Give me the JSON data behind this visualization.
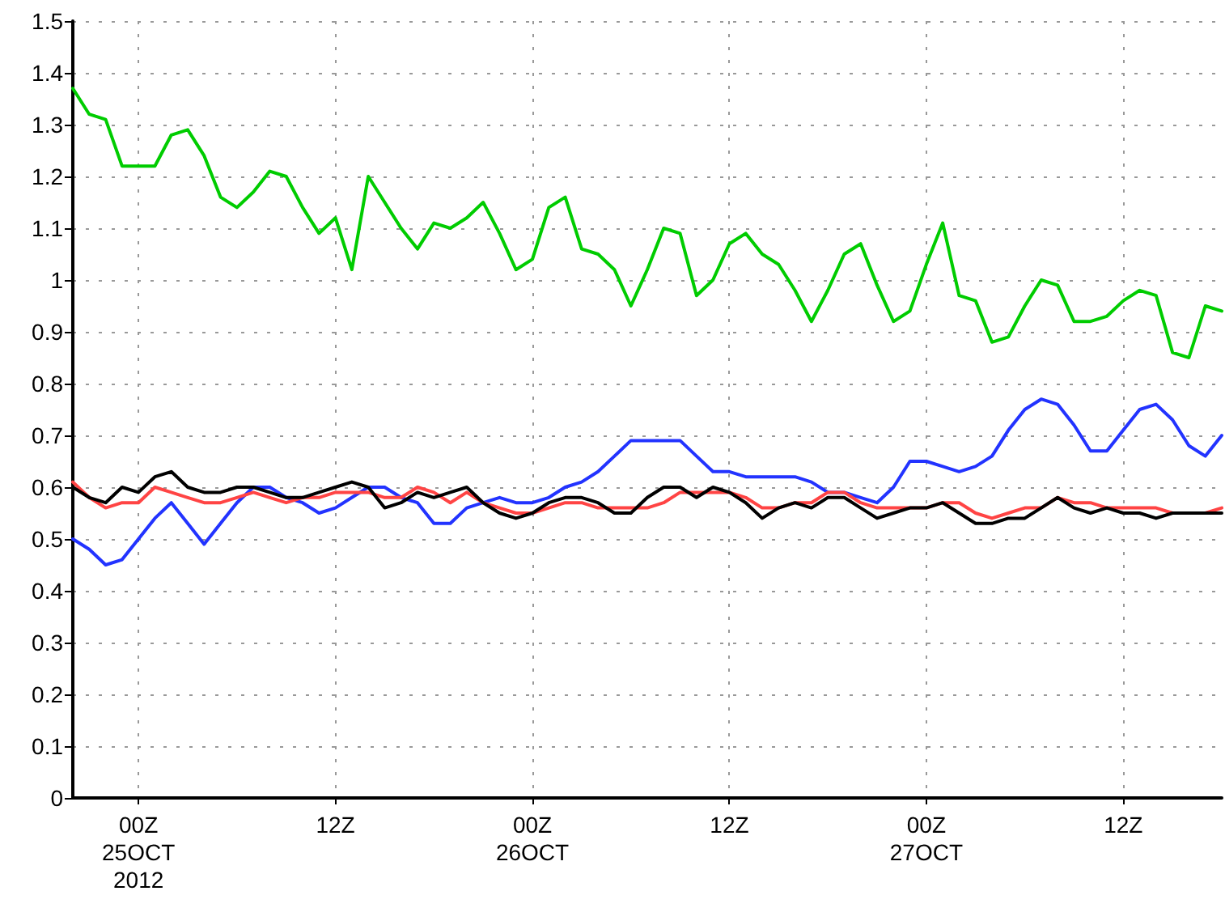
{
  "chart_data": {
    "type": "line",
    "x": [
      "2012-10-24T20:00",
      "2012-10-24T21:00",
      "2012-10-24T22:00",
      "2012-10-24T23:00",
      "2012-10-25T00:00",
      "2012-10-25T01:00",
      "2012-10-25T02:00",
      "2012-10-25T03:00",
      "2012-10-25T04:00",
      "2012-10-25T05:00",
      "2012-10-25T06:00",
      "2012-10-25T07:00",
      "2012-10-25T08:00",
      "2012-10-25T09:00",
      "2012-10-25T10:00",
      "2012-10-25T11:00",
      "2012-10-25T12:00",
      "2012-10-25T13:00",
      "2012-10-25T14:00",
      "2012-10-25T15:00",
      "2012-10-25T16:00",
      "2012-10-25T17:00",
      "2012-10-25T18:00",
      "2012-10-25T19:00",
      "2012-10-25T20:00",
      "2012-10-25T21:00",
      "2012-10-25T22:00",
      "2012-10-25T23:00",
      "2012-10-26T00:00",
      "2012-10-26T01:00",
      "2012-10-26T02:00",
      "2012-10-26T03:00",
      "2012-10-26T04:00",
      "2012-10-26T05:00",
      "2012-10-26T06:00",
      "2012-10-26T07:00",
      "2012-10-26T08:00",
      "2012-10-26T09:00",
      "2012-10-26T10:00",
      "2012-10-26T11:00",
      "2012-10-26T12:00",
      "2012-10-26T13:00",
      "2012-10-26T14:00",
      "2012-10-26T15:00",
      "2012-10-26T16:00",
      "2012-10-26T17:00",
      "2012-10-26T18:00",
      "2012-10-26T19:00",
      "2012-10-26T20:00",
      "2012-10-26T21:00",
      "2012-10-26T22:00",
      "2012-10-26T23:00",
      "2012-10-27T00:00",
      "2012-10-27T01:00",
      "2012-10-27T02:00",
      "2012-10-27T03:00",
      "2012-10-27T04:00",
      "2012-10-27T05:00",
      "2012-10-27T06:00",
      "2012-10-27T07:00",
      "2012-10-27T08:00",
      "2012-10-27T09:00",
      "2012-10-27T10:00",
      "2012-10-27T11:00",
      "2012-10-27T12:00",
      "2012-10-27T13:00",
      "2012-10-27T14:00",
      "2012-10-27T15:00",
      "2012-10-27T16:00",
      "2012-10-27T17:00",
      "2012-10-27T18:00"
    ],
    "series": [
      {
        "color": "#00cc00",
        "values": [
          1.37,
          1.32,
          1.31,
          1.22,
          1.22,
          1.22,
          1.28,
          1.29,
          1.24,
          1.16,
          1.14,
          1.17,
          1.21,
          1.2,
          1.14,
          1.09,
          1.12,
          1.02,
          1.2,
          1.15,
          1.1,
          1.06,
          1.11,
          1.1,
          1.12,
          1.15,
          1.09,
          1.02,
          1.04,
          1.14,
          1.16,
          1.06,
          1.05,
          1.02,
          0.95,
          1.02,
          1.1,
          1.09,
          0.97,
          1.0,
          1.07,
          1.09,
          1.05,
          1.03,
          0.98,
          0.92,
          0.98,
          1.05,
          1.07,
          0.99,
          0.92,
          0.94,
          1.03,
          1.11,
          0.97,
          0.96,
          0.88,
          0.89,
          0.95,
          1.0,
          0.99,
          0.92,
          0.92,
          0.93,
          0.96,
          0.98,
          0.97,
          0.86,
          0.85,
          0.95,
          0.94
        ]
      },
      {
        "color": "#2233ff",
        "values": [
          0.5,
          0.48,
          0.45,
          0.46,
          0.5,
          0.54,
          0.57,
          0.53,
          0.49,
          0.53,
          0.57,
          0.6,
          0.6,
          0.58,
          0.57,
          0.55,
          0.56,
          0.58,
          0.6,
          0.6,
          0.58,
          0.57,
          0.53,
          0.53,
          0.56,
          0.57,
          0.58,
          0.57,
          0.57,
          0.58,
          0.6,
          0.61,
          0.63,
          0.66,
          0.69,
          0.69,
          0.69,
          0.69,
          0.66,
          0.63,
          0.63,
          0.62,
          0.62,
          0.62,
          0.62,
          0.61,
          0.59,
          0.59,
          0.58,
          0.57,
          0.6,
          0.65,
          0.65,
          0.64,
          0.63,
          0.64,
          0.66,
          0.71,
          0.75,
          0.77,
          0.76,
          0.72,
          0.67,
          0.67,
          0.71,
          0.75,
          0.76,
          0.73,
          0.68,
          0.66,
          0.7
        ]
      },
      {
        "color": "#ff4444",
        "values": [
          0.61,
          0.58,
          0.56,
          0.57,
          0.57,
          0.6,
          0.59,
          0.58,
          0.57,
          0.57,
          0.58,
          0.59,
          0.58,
          0.57,
          0.58,
          0.58,
          0.59,
          0.59,
          0.59,
          0.58,
          0.58,
          0.6,
          0.59,
          0.57,
          0.59,
          0.57,
          0.56,
          0.55,
          0.55,
          0.56,
          0.57,
          0.57,
          0.56,
          0.56,
          0.56,
          0.56,
          0.57,
          0.59,
          0.59,
          0.59,
          0.59,
          0.58,
          0.56,
          0.56,
          0.57,
          0.57,
          0.59,
          0.59,
          0.57,
          0.56,
          0.56,
          0.56,
          0.56,
          0.57,
          0.57,
          0.55,
          0.54,
          0.55,
          0.56,
          0.56,
          0.58,
          0.57,
          0.57,
          0.56,
          0.56,
          0.56,
          0.56,
          0.55,
          0.55,
          0.55,
          0.56
        ]
      },
      {
        "color": "#000000",
        "values": [
          0.6,
          0.58,
          0.57,
          0.6,
          0.59,
          0.62,
          0.63,
          0.6,
          0.59,
          0.59,
          0.6,
          0.6,
          0.59,
          0.58,
          0.58,
          0.59,
          0.6,
          0.61,
          0.6,
          0.56,
          0.57,
          0.59,
          0.58,
          0.59,
          0.6,
          0.57,
          0.55,
          0.54,
          0.55,
          0.57,
          0.58,
          0.58,
          0.57,
          0.55,
          0.55,
          0.58,
          0.6,
          0.6,
          0.58,
          0.6,
          0.59,
          0.57,
          0.54,
          0.56,
          0.57,
          0.56,
          0.58,
          0.58,
          0.56,
          0.54,
          0.55,
          0.56,
          0.56,
          0.57,
          0.55,
          0.53,
          0.53,
          0.54,
          0.54,
          0.56,
          0.58,
          0.56,
          0.55,
          0.56,
          0.55,
          0.55,
          0.54,
          0.55,
          0.55,
          0.55,
          0.55
        ]
      }
    ],
    "xlim": [
      "2012-10-24T20:00",
      "2012-10-27T18:00"
    ],
    "xticks": [
      {
        "value": "2012-10-25T00:00",
        "label": "00Z\n25OCT\n2012"
      },
      {
        "value": "2012-10-25T12:00",
        "label": "12Z"
      },
      {
        "value": "2012-10-26T00:00",
        "label": "00Z\n26OCT"
      },
      {
        "value": "2012-10-26T12:00",
        "label": "12Z"
      },
      {
        "value": "2012-10-27T00:00",
        "label": "00Z\n27OCT"
      },
      {
        "value": "2012-10-27T12:00",
        "label": "12Z"
      }
    ],
    "ylim": [
      0,
      1.5
    ],
    "yticks": [
      0,
      0.1,
      0.2,
      0.3,
      0.4,
      0.5,
      0.6,
      0.7,
      0.8,
      0.9,
      1,
      1.1,
      1.2,
      1.3,
      1.4,
      1.5
    ],
    "grid": true,
    "marker": "none",
    "line_style": "solid"
  }
}
